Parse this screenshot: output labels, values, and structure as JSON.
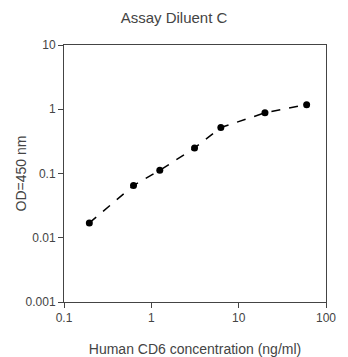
{
  "chart_data": {
    "type": "line",
    "title": "Assay Diluent C",
    "xlabel": "Human CD6 concentration (ng/ml)",
    "ylabel": "OD=450 nm",
    "x": [
      0.195,
      0.625,
      1.25,
      3.125,
      6.25,
      20,
      60
    ],
    "values": [
      0.017,
      0.065,
      0.112,
      0.25,
      0.52,
      0.88,
      1.18
    ],
    "color": "#000000",
    "marker": "circle",
    "line_style": "dashed",
    "log": true,
    "xlim": [
      0.1,
      100
    ],
    "xticks": [
      0.1,
      1,
      10,
      100
    ],
    "ylim": [
      0.001,
      10
    ],
    "yticks": [
      0.001,
      0.01,
      0.1,
      1,
      10
    ],
    "grid": false
  }
}
